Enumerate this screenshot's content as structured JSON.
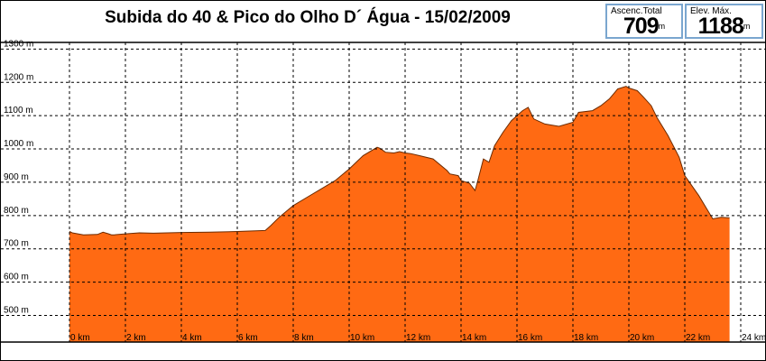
{
  "header": {
    "title": "Subida do 40 & Pico do Olho D´ Água - 15/02/2009",
    "ascent_label": "Ascenc.Total",
    "ascent_value": "709",
    "ascent_unit": "m",
    "elev_label": "Elev. Máx.",
    "elev_value": "1188",
    "elev_unit": "m"
  },
  "colors": {
    "fill": "#ff6a13",
    "stroke": "#000000",
    "grid": "#000000"
  },
  "chart_data": {
    "type": "area",
    "title": "Subida do 40 & Pico do Olho D´ Água - 15/02/2009",
    "xlabel": "",
    "ylabel": "",
    "xlim": [
      0,
      24
    ],
    "ylim": [
      420,
      1320
    ],
    "grid": true,
    "x_ticks": [
      0,
      2,
      4,
      6,
      8,
      10,
      12,
      14,
      16,
      18,
      20,
      22,
      24
    ],
    "x_tick_labels": [
      "0 km",
      "2 km",
      "4 km",
      "6 km",
      "8 km",
      "10 km",
      "12 km",
      "14 km",
      "16 km",
      "18 km",
      "20 km",
      "22 km",
      "24 km"
    ],
    "y_ticks": [
      500,
      600,
      700,
      800,
      900,
      1000,
      1100,
      1200,
      1300
    ],
    "y_tick_labels": [
      "500 m",
      "600 m",
      "700 m",
      "800 m",
      "900 m",
      "1000 m",
      "1100 m",
      "1200 m",
      "1300 m"
    ],
    "series": [
      {
        "x": [
          0,
          0.1,
          0.5,
          1.0,
          1.2,
          1.4,
          1.5,
          1.6,
          2.0,
          2.5,
          3.0,
          4.0,
          5.0,
          6.0,
          7.0,
          7.2,
          7.5,
          8.0,
          8.5,
          9.0,
          9.5,
          10.0,
          10.5,
          11.0,
          11.1,
          11.3,
          11.6,
          11.8,
          12.0,
          12.2,
          12.5,
          13.0,
          13.5,
          13.6,
          13.9,
          14.0,
          14.3,
          14.5,
          14.6,
          14.8,
          15.0,
          15.2,
          15.5,
          15.8,
          16.2,
          16.4,
          16.6,
          17.0,
          17.5,
          18.0,
          18.2,
          18.7,
          19.0,
          19.3,
          19.5,
          19.6,
          19.9,
          20.0,
          20.3,
          20.5,
          20.8,
          21.0,
          21.4,
          21.8,
          22.0,
          22.5,
          23.0,
          23.3,
          23.6
        ],
        "y": [
          752,
          748,
          742,
          743,
          750,
          745,
          742,
          742,
          745,
          748,
          747,
          749,
          750,
          752,
          755,
          770,
          795,
          830,
          855,
          880,
          905,
          940,
          980,
          1005,
          1002,
          990,
          988,
          992,
          988,
          986,
          980,
          970,
          935,
          925,
          920,
          905,
          897,
          875,
          905,
          970,
          960,
          1010,
          1050,
          1085,
          1115,
          1125,
          1090,
          1075,
          1068,
          1080,
          1110,
          1115,
          1130,
          1150,
          1170,
          1180,
          1188,
          1183,
          1175,
          1158,
          1130,
          1095,
          1040,
          975,
          920,
          860,
          790,
          795,
          793
        ]
      }
    ]
  }
}
